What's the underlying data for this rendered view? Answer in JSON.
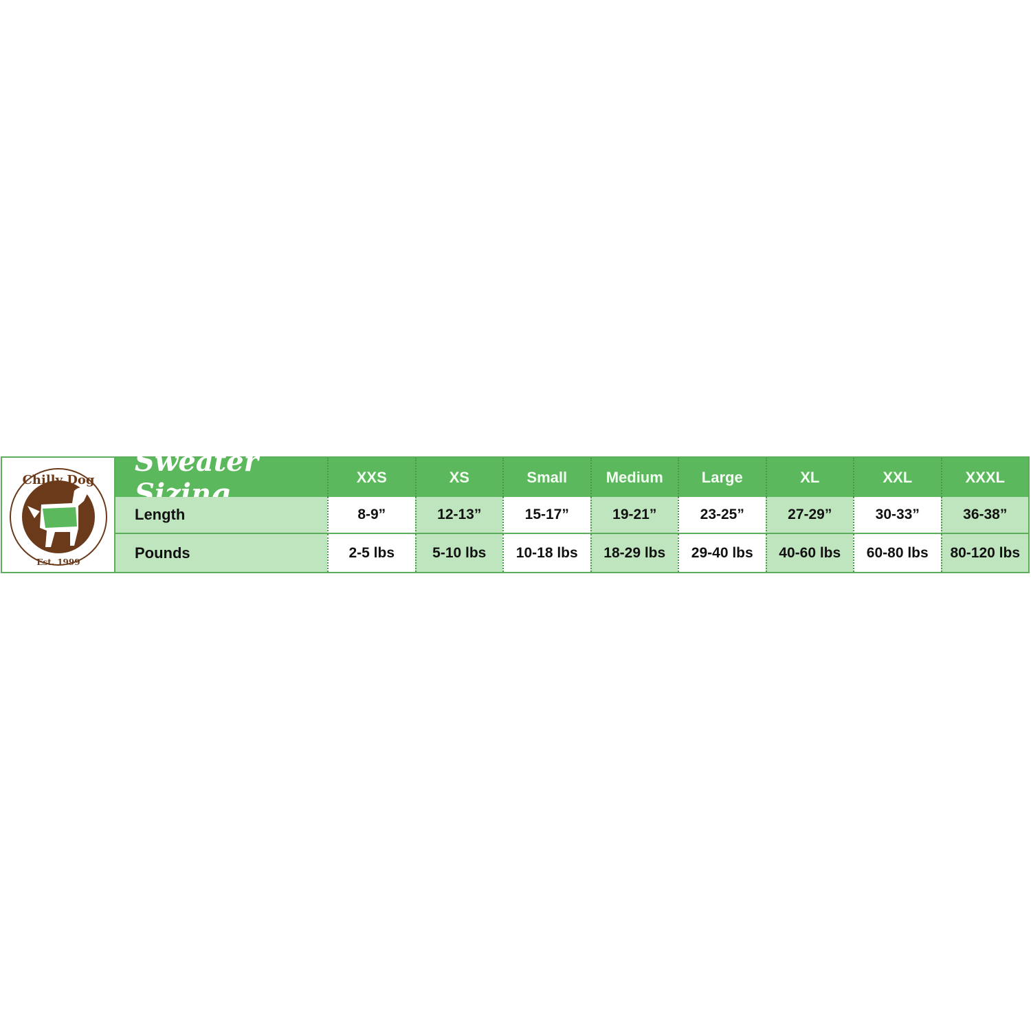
{
  "logo": {
    "brand": "Chilly Dog",
    "established": "Est. 1999",
    "colors": {
      "brown": "#6b3a1a",
      "green": "#5cb85c"
    }
  },
  "title": "Sweater Sizing",
  "sizes": [
    "XXS",
    "XS",
    "Small",
    "Medium",
    "Large",
    "XL",
    "XXL",
    "XXXL"
  ],
  "rows": [
    {
      "label": "Length",
      "values": [
        "8-9”",
        "12-13”",
        "15-17”",
        "19-21”",
        "23-25”",
        "27-29”",
        "30-33”",
        "36-38”"
      ]
    },
    {
      "label": "Pounds",
      "values": [
        "2-5 lbs",
        "5-10 lbs",
        "10-18 lbs",
        "18-29 lbs",
        "29-40 lbs",
        "40-60 lbs",
        "60-80 lbs",
        "80-120 lbs"
      ]
    }
  ],
  "colors": {
    "header": "#5cb85c",
    "light": "#bfe5bf",
    "border": "#5cae5c"
  }
}
